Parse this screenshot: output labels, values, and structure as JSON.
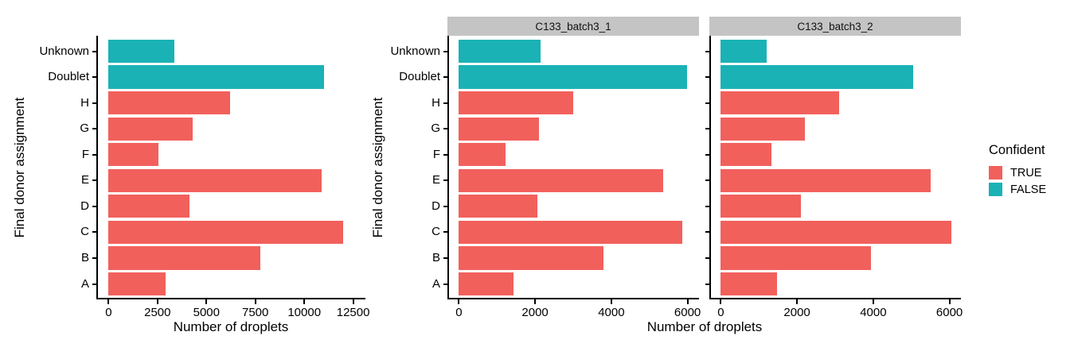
{
  "chart_data": {
    "type": "bar",
    "orientation": "horizontal",
    "title": "",
    "xlabel": "Number of droplets",
    "ylabel": "Final donor assignment",
    "categories_top_to_bottom": [
      "Unknown",
      "Doublet",
      "H",
      "G",
      "F",
      "E",
      "D",
      "C",
      "B",
      "A"
    ],
    "category_confident": [
      "FALSE",
      "FALSE",
      "TRUE",
      "TRUE",
      "TRUE",
      "TRUE",
      "TRUE",
      "TRUE",
      "TRUE",
      "TRUE"
    ],
    "panels": [
      {
        "name": "combined",
        "strip_label": null,
        "xmax": 12500,
        "xticks": [
          0,
          2500,
          5000,
          7500,
          10000,
          12500
        ],
        "values": [
          3350,
          11000,
          6200,
          4300,
          2550,
          10900,
          4150,
          12000,
          7750,
          2900
        ]
      },
      {
        "name": "C133_batch3_1",
        "strip_label": "C133_batch3_1",
        "xmax": 6000,
        "xticks": [
          0,
          2000,
          4000,
          6000
        ],
        "values": [
          2150,
          5980,
          3000,
          2100,
          1230,
          5350,
          2050,
          5870,
          3790,
          1440
        ]
      },
      {
        "name": "C133_batch3_2",
        "strip_label": "C133_batch3_2",
        "xmax": 6000,
        "xticks": [
          0,
          2000,
          4000,
          6000
        ],
        "values": [
          1200,
          5050,
          3100,
          2200,
          1320,
          5500,
          2100,
          6050,
          3950,
          1480
        ]
      }
    ],
    "legend": {
      "title": "Confident",
      "position": "right",
      "entries": [
        {
          "label": "TRUE",
          "color": "#F2605C"
        },
        {
          "label": "FALSE",
          "color": "#1AB2B5"
        }
      ]
    },
    "style": {
      "strip_bg": "#C4C4C4",
      "axis_color": "#000000",
      "background": "#FFFFFF"
    },
    "axis_expansion_mult": 0.05,
    "grid": false
  }
}
